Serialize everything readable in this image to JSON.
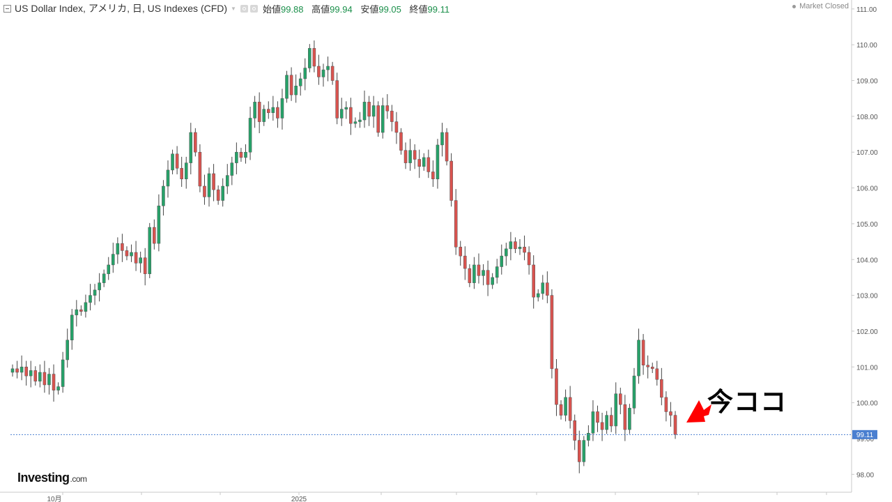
{
  "header": {
    "title": "US Dollar Index, アメリカ, 日, US Indexes (CFD)",
    "open_label": "始値",
    "open": "99.88",
    "high_label": "高値",
    "high": "99.94",
    "low_label": "安値",
    "low": "99.05",
    "close_label": "終値",
    "close": "99.11"
  },
  "market_status": "Market Closed",
  "annotation": "今ココ",
  "logo": {
    "main": "Investing",
    "suffix": ".com"
  },
  "colors": {
    "up": "#26a269",
    "down": "#d9534f",
    "price_line": "#4a7fd0",
    "badge": "#4a7fd0"
  },
  "chart_data": {
    "type": "candlestick",
    "ylim": [
      97.5,
      111.25
    ],
    "y_ticks": [
      "98.00",
      "99.00",
      "100.00",
      "101.00",
      "102.00",
      "103.00",
      "104.00",
      "105.00",
      "106.00",
      "107.00",
      "108.00",
      "109.00",
      "110.00",
      "111.00"
    ],
    "x_ticks": [
      "10月",
      "2025"
    ],
    "last_price": "99.11",
    "closes": [
      100.95,
      100.85,
      101.0,
      100.75,
      100.9,
      100.6,
      100.85,
      100.5,
      100.8,
      100.35,
      100.45,
      101.2,
      101.75,
      102.45,
      102.6,
      102.55,
      102.8,
      103.0,
      103.15,
      103.35,
      103.6,
      103.85,
      104.15,
      104.45,
      104.25,
      104.1,
      104.2,
      103.9,
      104.05,
      103.6,
      104.9,
      104.45,
      105.5,
      106.05,
      106.5,
      106.95,
      106.55,
      106.25,
      106.7,
      107.55,
      107.0,
      106.05,
      105.75,
      106.4,
      105.95,
      105.65,
      106.05,
      106.35,
      106.7,
      107.0,
      106.85,
      107.0,
      107.95,
      108.4,
      107.85,
      108.2,
      108.1,
      108.25,
      107.95,
      108.5,
      109.15,
      108.6,
      108.85,
      109.05,
      109.35,
      109.9,
      109.4,
      109.1,
      109.3,
      109.4,
      109.0,
      107.95,
      108.2,
      108.25,
      107.8,
      107.85,
      107.9,
      108.4,
      108.0,
      108.3,
      107.55,
      108.3,
      108.15,
      107.85,
      107.55,
      107.05,
      106.7,
      107.05,
      106.8,
      106.6,
      106.85,
      106.45,
      106.25,
      107.2,
      107.55,
      106.75,
      105.65,
      104.35,
      104.1,
      103.75,
      103.35,
      103.85,
      103.55,
      103.7,
      103.3,
      103.5,
      103.8,
      104.1,
      104.3,
      104.5,
      104.3,
      104.35,
      104.2,
      103.85,
      102.95,
      103.05,
      103.35,
      103.0,
      100.95,
      99.95,
      99.65,
      100.15,
      99.5,
      98.95,
      98.35,
      98.95,
      99.15,
      99.75,
      99.45,
      99.25,
      99.65,
      99.35,
      100.25,
      99.95,
      99.25,
      99.85,
      100.75,
      101.75,
      101.05,
      101.0,
      100.95,
      100.65,
      100.15,
      99.75,
      99.65,
      99.11
    ]
  }
}
